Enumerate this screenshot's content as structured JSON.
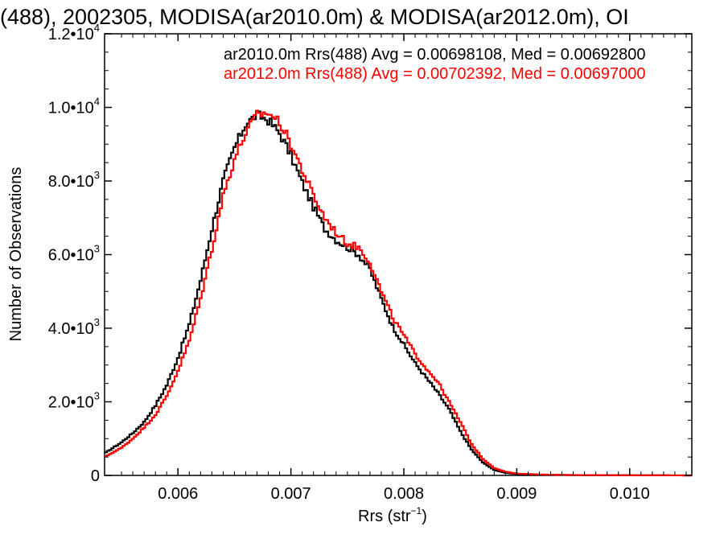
{
  "chart_data": {
    "type": "line",
    "title": "(488), 2002305, MODISA(ar2010.0m) & MODISA(ar2012.0m), OI",
    "xlabel": "Rrs (str",
    "xlabel_sup": "−1",
    "xlabel_close": ")",
    "ylabel": "Number of Observations",
    "xlim": [
      0.00535,
      0.01055
    ],
    "ylim": [
      0,
      12000
    ],
    "x_ticks": [
      {
        "value": 0.006,
        "label": "0.006"
      },
      {
        "value": 0.007,
        "label": "0.007"
      },
      {
        "value": 0.008,
        "label": "0.008"
      },
      {
        "value": 0.009,
        "label": "0.009"
      },
      {
        "value": 0.01,
        "label": "0.010"
      }
    ],
    "y_ticks": [
      {
        "value": 0,
        "mant": "0",
        "exp": ""
      },
      {
        "value": 2000,
        "mant": "2.0•10",
        "exp": "3"
      },
      {
        "value": 4000,
        "mant": "4.0•10",
        "exp": "3"
      },
      {
        "value": 6000,
        "mant": "6.0•10",
        "exp": "3"
      },
      {
        "value": 8000,
        "mant": "8.0•10",
        "exp": "3"
      },
      {
        "value": 10000,
        "mant": "1.0•10",
        "exp": "4"
      },
      {
        "value": 12000,
        "mant": "1.2•10",
        "exp": "4"
      }
    ],
    "grid": false,
    "legend": "top-right",
    "series": [
      {
        "name": "ar2010.0m Rrs(488) Avg = 0.00698108, Med = 0.00692800",
        "color": "#000000",
        "points": [
          [
            0.00535,
            600
          ],
          [
            0.0055,
            900
          ],
          [
            0.0056,
            1150
          ],
          [
            0.0057,
            1450
          ],
          [
            0.0058,
            1900
          ],
          [
            0.0059,
            2450
          ],
          [
            0.006,
            3200
          ],
          [
            0.0061,
            4100
          ],
          [
            0.0062,
            5300
          ],
          [
            0.0063,
            6700
          ],
          [
            0.0064,
            8000
          ],
          [
            0.0065,
            8900
          ],
          [
            0.0066,
            9550
          ],
          [
            0.0067,
            9800
          ],
          [
            0.0068,
            9650
          ],
          [
            0.0069,
            9300
          ],
          [
            0.007,
            8700
          ],
          [
            0.0071,
            7950
          ],
          [
            0.0072,
            7300
          ],
          [
            0.0073,
            6700
          ],
          [
            0.0074,
            6400
          ],
          [
            0.0075,
            6200
          ],
          [
            0.0076,
            6000
          ],
          [
            0.0077,
            5600
          ],
          [
            0.0078,
            4800
          ],
          [
            0.0079,
            4050
          ],
          [
            0.008,
            3550
          ],
          [
            0.0081,
            3050
          ],
          [
            0.0082,
            2650
          ],
          [
            0.0083,
            2250
          ],
          [
            0.0084,
            1800
          ],
          [
            0.0085,
            1200
          ],
          [
            0.0086,
            700
          ],
          [
            0.0087,
            350
          ],
          [
            0.0088,
            150
          ],
          [
            0.0089,
            70
          ],
          [
            0.009,
            40
          ],
          [
            0.0092,
            20
          ],
          [
            0.0095,
            10
          ],
          [
            0.01,
            5
          ],
          [
            0.01055,
            0
          ]
        ]
      },
      {
        "name": "ar2012.0m Rrs(488) Avg = 0.00702392, Med = 0.00697000",
        "color": "#ff0000",
        "points": [
          [
            0.00535,
            500
          ],
          [
            0.0055,
            750
          ],
          [
            0.0056,
            1000
          ],
          [
            0.0057,
            1300
          ],
          [
            0.0058,
            1650
          ],
          [
            0.0059,
            2150
          ],
          [
            0.006,
            2850
          ],
          [
            0.0061,
            3650
          ],
          [
            0.0062,
            4800
          ],
          [
            0.0063,
            6150
          ],
          [
            0.0064,
            7600
          ],
          [
            0.0065,
            8600
          ],
          [
            0.0066,
            9300
          ],
          [
            0.0067,
            9800
          ],
          [
            0.0068,
            9850
          ],
          [
            0.0069,
            9600
          ],
          [
            0.007,
            9000
          ],
          [
            0.0071,
            8300
          ],
          [
            0.0072,
            7600
          ],
          [
            0.0073,
            7000
          ],
          [
            0.0074,
            6600
          ],
          [
            0.0075,
            6300
          ],
          [
            0.0076,
            6200
          ],
          [
            0.0077,
            5800
          ],
          [
            0.0078,
            5000
          ],
          [
            0.0079,
            4300
          ],
          [
            0.008,
            3800
          ],
          [
            0.0081,
            3300
          ],
          [
            0.0082,
            2900
          ],
          [
            0.0083,
            2550
          ],
          [
            0.0084,
            2000
          ],
          [
            0.0085,
            1450
          ],
          [
            0.0086,
            850
          ],
          [
            0.0087,
            450
          ],
          [
            0.0088,
            200
          ],
          [
            0.0089,
            100
          ],
          [
            0.009,
            50
          ],
          [
            0.0092,
            25
          ],
          [
            0.0095,
            10
          ],
          [
            0.01,
            5
          ],
          [
            0.01055,
            0
          ]
        ]
      }
    ]
  }
}
